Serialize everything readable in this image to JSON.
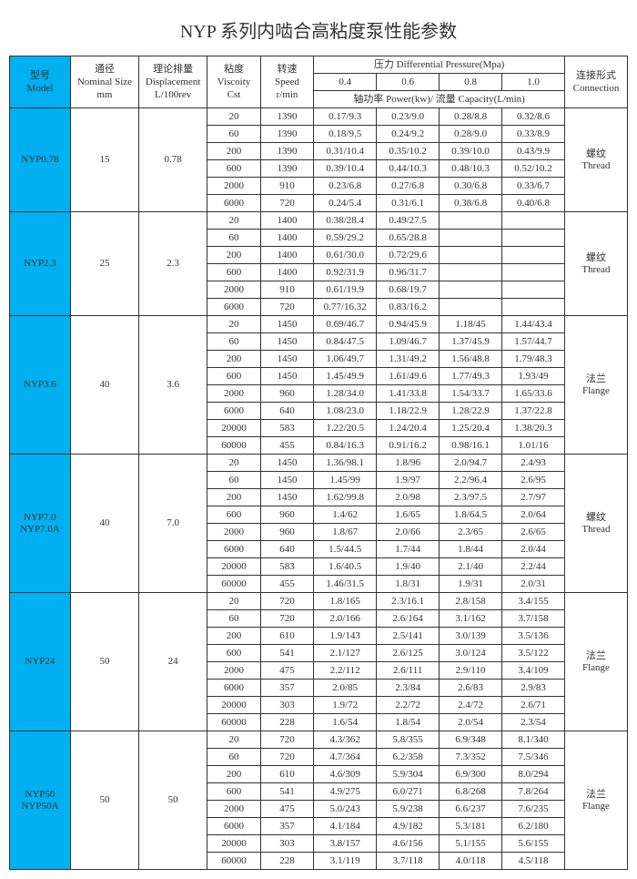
{
  "title": "NYP 系列内啮合高粘度泵性能参数",
  "headers": {
    "model": "型号\nModel",
    "size": "通径\nNominal Size\nmm",
    "disp": "理论排量\nDisplacement\nL/100rev",
    "visc": "粘度\nViscoity\nCst",
    "speed": "转速\nSpeed\nr/min",
    "pressure": "压力 Differential Pressure(Mpa)",
    "subhead": "轴功率 Power(kw)/ 流量 Capacity(L/min)",
    "p04": "0.4",
    "p06": "0.6",
    "p08": "0.8",
    "p10": "1.0",
    "conn": "连接形式\nConnection"
  },
  "groups": [
    {
      "model": "NYP0.78",
      "size": "15",
      "disp": "0.78",
      "conn": "螺纹\nThread",
      "rows": [
        {
          "v": "20",
          "s": "1390",
          "c": [
            "0.17/9.3",
            "0.23/9.0",
            "0.28/8.8",
            "0.32/8.6"
          ]
        },
        {
          "v": "60",
          "s": "1390",
          "c": [
            "0.18/9.5",
            "0.24/9.2",
            "0.28/9.0",
            "0.33/8.9"
          ]
        },
        {
          "v": "200",
          "s": "1390",
          "c": [
            "0.31/10.4",
            "0.35/10.2",
            "0.39/10.0",
            "0.43/9.9"
          ]
        },
        {
          "v": "600",
          "s": "1390",
          "c": [
            "0.39/10.4",
            "0.44/10.3",
            "0.48/10.3",
            "0.52/10.2"
          ]
        },
        {
          "v": "2000",
          "s": "910",
          "c": [
            "0.23/6.8",
            "0.27/6.8",
            "0.30/6.8",
            "0.33/6.7"
          ]
        },
        {
          "v": "6000",
          "s": "720",
          "c": [
            "0.24/5.4",
            "0.31/6.1",
            "0.38/6.8",
            "0.40/6.8"
          ]
        }
      ]
    },
    {
      "model": "NYP2.3",
      "size": "25",
      "disp": "2.3",
      "conn": "螺纹\nThread",
      "rows": [
        {
          "v": "20",
          "s": "1400",
          "c": [
            "0.38/28.4",
            "0.49/27.5",
            "",
            ""
          ]
        },
        {
          "v": "60",
          "s": "1400",
          "c": [
            "0.59/29.2",
            "0.65/28.8",
            "",
            ""
          ]
        },
        {
          "v": "200",
          "s": "1400",
          "c": [
            "0.61/30.0",
            "0.72/29.6",
            "",
            ""
          ]
        },
        {
          "v": "600",
          "s": "1400",
          "c": [
            "0.92/31.9",
            "0.96/31.7",
            "",
            ""
          ]
        },
        {
          "v": "2000",
          "s": "910",
          "c": [
            "0.61/19.9",
            "0.68/19.7",
            "",
            ""
          ]
        },
        {
          "v": "6000",
          "s": "720",
          "c": [
            "0.77/16.32",
            "0.83/16.2",
            "",
            ""
          ]
        }
      ]
    },
    {
      "model": "NYP3.6",
      "size": "40",
      "disp": "3.6",
      "conn": "法兰\nFlange",
      "rows": [
        {
          "v": "20",
          "s": "1450",
          "c": [
            "0.69/46.7",
            "0.94/45.9",
            "1.18/45",
            "1.44/43.4"
          ]
        },
        {
          "v": "60",
          "s": "1450",
          "c": [
            "0.84/47.5",
            "1.09/46.7",
            "1.37/45.9",
            "1.57/44.7"
          ]
        },
        {
          "v": "200",
          "s": "1450",
          "c": [
            "1.06/49.7",
            "1.31/49.2",
            "1.56/48.8",
            "1.79/48.3"
          ]
        },
        {
          "v": "600",
          "s": "1450",
          "c": [
            "1.45/49.9",
            "1.61/49.6",
            "1.77/49.3",
            "1.93/49"
          ]
        },
        {
          "v": "2000",
          "s": "960",
          "c": [
            "1.28/34.0",
            "1.41/33.8",
            "1.54/33.7",
            "1.65/33.6"
          ]
        },
        {
          "v": "6000",
          "s": "640",
          "c": [
            "1.08/23.0",
            "1.18/22.9",
            "1.28/22.9",
            "1.37/22.8"
          ]
        },
        {
          "v": "20000",
          "s": "583",
          "c": [
            "1.22/20.5",
            "1.24/20.4",
            "1.25/20.4",
            "1.38/20.3"
          ]
        },
        {
          "v": "60000",
          "s": "455",
          "c": [
            "0.84/16.3",
            "0.91/16.2",
            "0.98/16.1",
            "1.01/16"
          ]
        }
      ]
    },
    {
      "model": "NYP7.0\nNYP7.0A",
      "size": "40",
      "disp": "7.0",
      "conn": "螺纹\nThread",
      "rows": [
        {
          "v": "20",
          "s": "1450",
          "c": [
            "1.36/98.1",
            "1.8/96",
            "2.0/94.7",
            "2.4/93"
          ]
        },
        {
          "v": "60",
          "s": "1450",
          "c": [
            "1.45/99",
            "1.9/97",
            "2.2/96.4",
            "2.6/95"
          ]
        },
        {
          "v": "200",
          "s": "1450",
          "c": [
            "1.62/99.8",
            "2.0/98",
            "2.3/97.5",
            "2.7/97"
          ]
        },
        {
          "v": "600",
          "s": "960",
          "c": [
            "1.4/62",
            "1.6/65",
            "1.8/64.5",
            "2.0/64"
          ]
        },
        {
          "v": "2000",
          "s": "960",
          "c": [
            "1.8/67",
            "2.0/66",
            "2.3/65",
            "2.6/65"
          ]
        },
        {
          "v": "6000",
          "s": "640",
          "c": [
            "1.5/44.5",
            "1.7/44",
            "1.8/44",
            "2.0/44"
          ]
        },
        {
          "v": "20000",
          "s": "583",
          "c": [
            "1.6/40.5",
            "1.9/40",
            "2.1/40",
            "2.2/44"
          ]
        },
        {
          "v": "60000",
          "s": "455",
          "c": [
            "1.46/31.5",
            "1.8/31",
            "1.9/31",
            "2.0/31"
          ]
        }
      ]
    },
    {
      "model": "NYP24",
      "size": "50",
      "disp": "24",
      "conn": "法兰\nFlange",
      "rows": [
        {
          "v": "20",
          "s": "720",
          "c": [
            "1.8/165",
            "2.3/16.1",
            "2.8/158",
            "3.4/155"
          ]
        },
        {
          "v": "60",
          "s": "720",
          "c": [
            "2.0/166",
            "2.6/164",
            "3.1/162",
            "3.7/158"
          ]
        },
        {
          "v": "200",
          "s": "610",
          "c": [
            "1.9/143",
            "2.5/141",
            "3.0/139",
            "3.5/136"
          ]
        },
        {
          "v": "600",
          "s": "541",
          "c": [
            "2.1/127",
            "2.6/125",
            "3.0/124",
            "3.5/122"
          ]
        },
        {
          "v": "2000",
          "s": "475",
          "c": [
            "2.2/112",
            "2.6/111",
            "2.9/110",
            "3.4/109"
          ]
        },
        {
          "v": "6000",
          "s": "357",
          "c": [
            "2.0/85",
            "2.3/84",
            "2.6/83",
            "2.9/83"
          ]
        },
        {
          "v": "20000",
          "s": "303",
          "c": [
            "1.9/72",
            "2.2/72",
            "2.4/72",
            "2.6/71"
          ]
        },
        {
          "v": "60000",
          "s": "228",
          "c": [
            "1.6/54",
            "1.8/54",
            "2.0/54",
            "2.3/54"
          ]
        }
      ]
    },
    {
      "model": "NYP50\nNYP50A",
      "size": "50",
      "disp": "50",
      "conn": "法兰\nFlange",
      "rows": [
        {
          "v": "20",
          "s": "720",
          "c": [
            "4.3/362",
            "5.8/355",
            "6.9/348",
            "8.1/340"
          ]
        },
        {
          "v": "60",
          "s": "720",
          "c": [
            "4.7/364",
            "6.2/358",
            "7.3/352",
            "7.5/346"
          ]
        },
        {
          "v": "200",
          "s": "610",
          "c": [
            "4.6/309",
            "5.9/304",
            "6.9/300",
            "8.0/294"
          ]
        },
        {
          "v": "600",
          "s": "541",
          "c": [
            "4.9/275",
            "6.0/271",
            "6.8/268",
            "7.8/264"
          ]
        },
        {
          "v": "2000",
          "s": "475",
          "c": [
            "5.0/243",
            "5.9/238",
            "6.6/237",
            "7.6/235"
          ]
        },
        {
          "v": "6000",
          "s": "357",
          "c": [
            "4.1/184",
            "4.9/182",
            "5.3/181",
            "6.2/180"
          ]
        },
        {
          "v": "20000",
          "s": "303",
          "c": [
            "3.8/157",
            "4.6/156",
            "5.1/155",
            "5.6/155"
          ]
        },
        {
          "v": "60000",
          "s": "228",
          "c": [
            "3.1/119",
            "3.7/118",
            "4.0/118",
            "4.5/118"
          ]
        }
      ]
    }
  ]
}
